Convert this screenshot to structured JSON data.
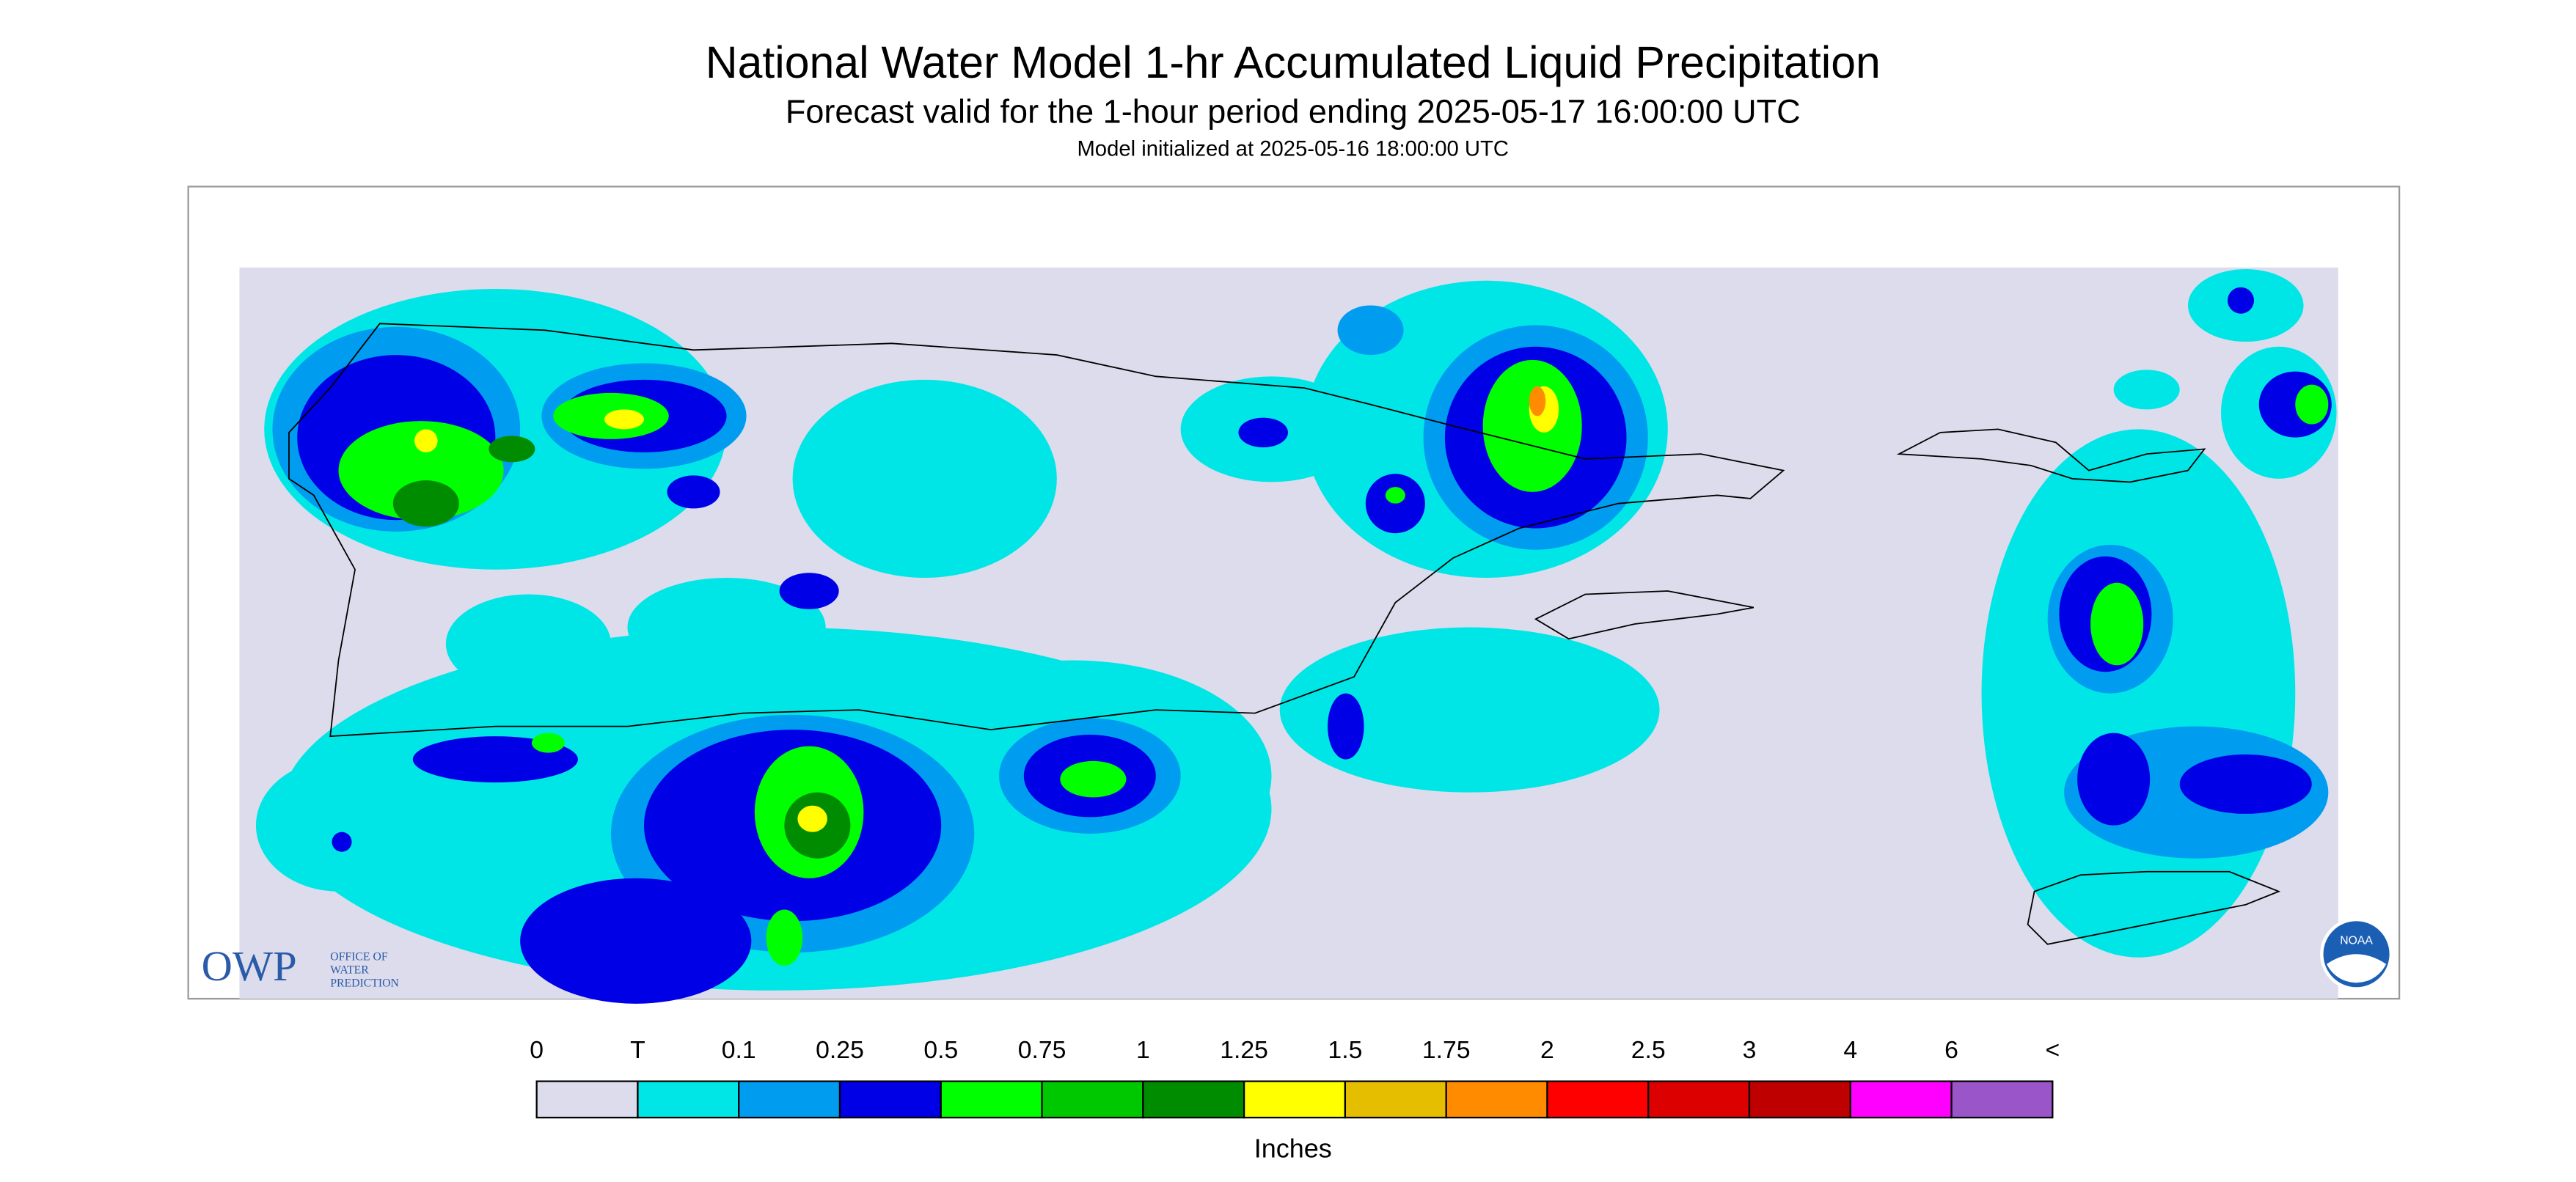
{
  "header": {
    "title": "National Water Model 1-hr Accumulated Liquid Precipitation",
    "subtitle": "Forecast valid for the 1-hour period ending 2025-05-17 16:00:00 UTC",
    "note": "Model initialized at 2025-05-16 18:00:00 UTC"
  },
  "legend": {
    "labels": [
      "0",
      "T",
      "0.1",
      "0.25",
      "0.5",
      "0.75",
      "1",
      "1.25",
      "1.5",
      "1.75",
      "2",
      "2.5",
      "3",
      "4",
      "6",
      "<"
    ],
    "colors": [
      "#dcdcec",
      "#00e6e6",
      "#009cf0",
      "#0000e6",
      "#00ff00",
      "#00c800",
      "#008c00",
      "#ffff00",
      "#e6be00",
      "#ff8c00",
      "#ff0000",
      "#dc0000",
      "#be0000",
      "#ff00ff",
      "#9a55c9"
    ],
    "units": "Inches"
  },
  "logos": {
    "owp": "OWP",
    "owp_name": [
      "OFFICE OF",
      "WATER",
      "PREDICTION"
    ],
    "noaa": "NOAA"
  }
}
